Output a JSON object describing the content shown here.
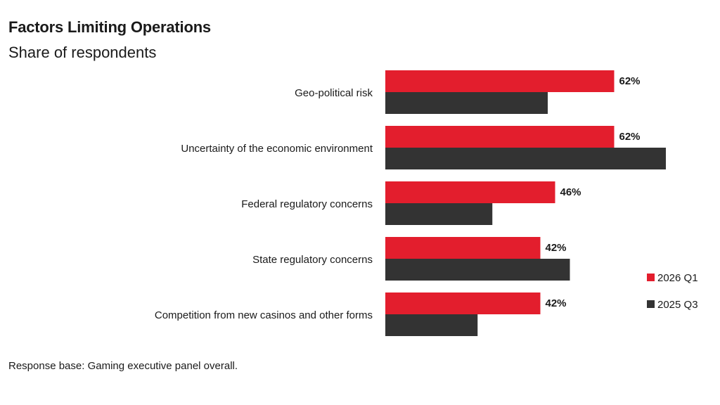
{
  "colors": {
    "series_2026": "#e31e2d",
    "series_2025": "#333333"
  },
  "footnote": "Response base: Gaming executive panel overall.",
  "chart_data": {
    "type": "bar",
    "orientation": "horizontal",
    "title": "Factors Limiting Operations",
    "subtitle": "Share of respondents",
    "categories": [
      "Geo-political risk",
      "Uncertainty of the economic environment",
      "Federal regulatory concerns",
      "State regulatory concerns",
      "Competition from new casinos and other forms"
    ],
    "series": [
      {
        "name": "2026 Q1",
        "values": [
          62,
          62,
          46,
          42,
          42
        ],
        "labels": [
          "62%",
          "62%",
          "46%",
          "42%",
          "42%"
        ]
      },
      {
        "name": "2025 Q3",
        "values": [
          44,
          76,
          29,
          50,
          25
        ]
      }
    ],
    "xlim": [
      0,
      100
    ],
    "grid": false,
    "legend_position": "right"
  }
}
